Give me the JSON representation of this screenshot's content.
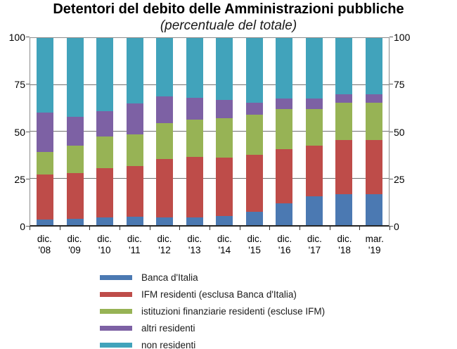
{
  "title": "Detentori del debito delle Amministrazioni pubbliche",
  "subtitle": "(percentuale del totale)",
  "chart_data": {
    "type": "bar",
    "stacked": true,
    "title": "Detentori del debito delle Amministrazioni pubbliche",
    "subtitle": "(percentuale del totale)",
    "xlabel": "",
    "ylabel": "",
    "ylim": [
      0,
      100
    ],
    "ytick_values": [
      0,
      25,
      50,
      75,
      100
    ],
    "ytick_labels": [
      "0",
      "25",
      "50",
      "75",
      "100"
    ],
    "grid": true,
    "axis_sides": [
      "left",
      "right"
    ],
    "legend_position": "bottom-left",
    "categories": [
      {
        "line1": "dic.",
        "line2": "'08"
      },
      {
        "line1": "dic.",
        "line2": "'09"
      },
      {
        "line1": "dic.",
        "line2": "'10"
      },
      {
        "line1": "dic.",
        "line2": "'11"
      },
      {
        "line1": "dic.",
        "line2": "'12"
      },
      {
        "line1": "dic.",
        "line2": "'13"
      },
      {
        "line1": "dic.",
        "line2": "'14"
      },
      {
        "line1": "dic.",
        "line2": "'15"
      },
      {
        "line1": "dic.",
        "line2": "'16"
      },
      {
        "line1": "dic.",
        "line2": "'17"
      },
      {
        "line1": "dic.",
        "line2": "'18"
      },
      {
        "line1": "mar.",
        "line2": "'19"
      }
    ],
    "series": [
      {
        "name": "Banca d'Italia",
        "color": "#4B79B2",
        "values": [
          3,
          3.5,
          4,
          4.5,
          4,
          4,
          5,
          7,
          11.5,
          15.5,
          16.5,
          16.5
        ]
      },
      {
        "name": "IFM residenti (esclusa Banca d'Italia)",
        "color": "#BE4C49",
        "values": [
          24,
          24.5,
          26.5,
          27,
          31.5,
          32.5,
          31,
          30.5,
          29,
          27,
          29,
          29
        ]
      },
      {
        "name": "istituzioni finanziarie residenti (escluse IFM)",
        "color": "#97B355",
        "values": [
          12,
          14.5,
          17,
          17,
          19,
          20,
          21,
          21.5,
          21.5,
          19.5,
          20,
          20
        ]
      },
      {
        "name": "altri residenti",
        "color": "#7D61A4",
        "values": [
          21,
          15.5,
          13.5,
          16.5,
          14.5,
          11.5,
          10,
          6.5,
          5.5,
          5.5,
          4.5,
          4.5
        ]
      },
      {
        "name": "non residenti",
        "color": "#41A3BB",
        "values": [
          40,
          42,
          39,
          35,
          31,
          32,
          33,
          34.5,
          32.5,
          32.5,
          30,
          30
        ]
      }
    ]
  }
}
